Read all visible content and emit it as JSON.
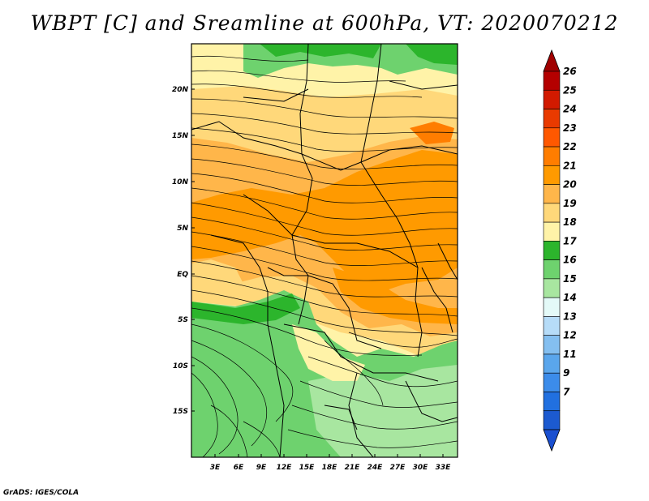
{
  "title": "WBPT [C] and Sreamline at 600hPa, VT: 2020070212",
  "footer": "GrADS: IGES/COLA",
  "map": {
    "variable": "Wet-bulb potential temperature",
    "level": "600hPa",
    "lon_ticks": [
      "3E",
      "6E",
      "9E",
      "12E",
      "15E",
      "18E",
      "21E",
      "24E",
      "27E",
      "30E",
      "33E"
    ],
    "lat_ticks": [
      "20N",
      "15N",
      "10N",
      "5N",
      "EQ",
      "5S",
      "10S",
      "15S"
    ]
  },
  "colorbar": {
    "levels": [
      "26",
      "25",
      "24",
      "23",
      "22",
      "21",
      "20",
      "19",
      "18",
      "17",
      "16",
      "15",
      "14",
      "13",
      "12",
      "11",
      "9",
      "7"
    ],
    "colors": [
      "#b40000",
      "#d21a00",
      "#e93a00",
      "#ff5800",
      "#ff7d00",
      "#ff9a00",
      "#ffb64a",
      "#ffd87a",
      "#fff3a8",
      "#2cb52c",
      "#6ed26e",
      "#a8e6a0",
      "#e4faf8",
      "#b6dcf8",
      "#84bff0",
      "#5aa6ec",
      "#3c8cea",
      "#2170e0",
      "#1c5ad0"
    ],
    "arrow_top": "#a00000",
    "arrow_bottom": "#1a4fd0"
  }
}
